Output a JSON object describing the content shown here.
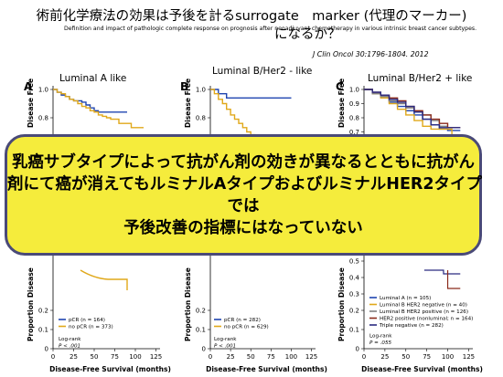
{
  "header": {
    "title_line1": "術前化学療法の効果は予後を計るsurrogate　marker (代理のマーカー)",
    "title_line2": "になるか？",
    "subtitle": "Definition and impact of pathologic complete response on prognosis after neoadjuvant chemotherapy in various intrinsic breast cancer subtypes.",
    "citation": "J Clin Oncol 30:1796-1804.   2012"
  },
  "callout": {
    "line1": "乳癌サブタイプによって抗がん剤の効きが異なるとともに抗がん",
    "line2": "剤にて癌が消えてもルミナルAタイプおよびルミナルHER2タイプ",
    "line3": "では",
    "line4": "予後改善の指標にはなっていない"
  },
  "colors": {
    "blue": "#1f44b0",
    "gold": "#e0a81a",
    "gray": "#808080",
    "dark_red": "#8b2a1a",
    "navy": "#2a2a80",
    "callout_fill": "#f5ec3c",
    "callout_border": "#4a4a78"
  },
  "chart_data": [
    {
      "type": "line",
      "panel": "A",
      "title": "Luminal A like",
      "ylabel": "Disease Free",
      "ylabel_lower": "Proportion Disease",
      "xlabel": "Disease-Free Survival (months)",
      "xticks": [
        0,
        25,
        50,
        75,
        100,
        125
      ],
      "yticks_upper": [
        "1.0",
        "0.8",
        "0.6"
      ],
      "yticks_lower": [
        "0.2",
        "0.1",
        "0"
      ],
      "ylim": [
        0,
        1
      ],
      "xlim": [
        0,
        130
      ],
      "series": [
        {
          "name": "pCR (n = 164)",
          "color": "#1f44b0",
          "x": [
            0,
            5,
            10,
            15,
            20,
            25,
            30,
            35,
            40,
            45,
            50,
            55,
            60,
            90
          ],
          "y": [
            1.0,
            0.98,
            0.96,
            0.95,
            0.93,
            0.92,
            0.92,
            0.91,
            0.89,
            0.87,
            0.85,
            0.84,
            0.84,
            0.84
          ]
        },
        {
          "name": "no pCR (n = 373)",
          "color": "#e0a81a",
          "x": [
            0,
            5,
            10,
            15,
            20,
            25,
            30,
            35,
            40,
            45,
            50,
            55,
            60,
            65,
            70,
            75,
            80,
            85,
            95,
            110
          ],
          "y": [
            1.0,
            0.98,
            0.97,
            0.95,
            0.93,
            0.92,
            0.9,
            0.88,
            0.87,
            0.85,
            0.84,
            0.82,
            0.81,
            0.8,
            0.79,
            0.79,
            0.76,
            0.76,
            0.73,
            0.73
          ]
        }
      ],
      "stat_label": "Log-rank",
      "stat_value": "P < .001"
    },
    {
      "type": "line",
      "panel": "B",
      "title": "Luminal B/Her2 -  like",
      "ylabel": "Disease Free",
      "ylabel_lower": "Proportion Disease",
      "xlabel": "Disease-Free Survival (months)",
      "xticks": [
        0,
        25,
        50,
        75,
        100,
        125
      ],
      "yticks_upper": [
        "1.0",
        "0.8",
        "0.6"
      ],
      "yticks_lower": [
        "0.2",
        "0.1",
        "0"
      ],
      "ylim": [
        0,
        1
      ],
      "xlim": [
        0,
        130
      ],
      "series": [
        {
          "name": "pCR (n = 282)",
          "color": "#1f44b0",
          "x": [
            0,
            10,
            20,
            100
          ],
          "y": [
            1.0,
            0.97,
            0.94,
            0.94
          ]
        },
        {
          "name": "no pCR (n = 629)",
          "color": "#e0a81a",
          "x": [
            0,
            5,
            10,
            15,
            20,
            25,
            30,
            35,
            40,
            45,
            50,
            55,
            60,
            65,
            70,
            75,
            80,
            85,
            90,
            95,
            100
          ],
          "y": [
            1.0,
            0.97,
            0.93,
            0.9,
            0.86,
            0.82,
            0.79,
            0.76,
            0.73,
            0.7,
            0.68,
            0.66,
            0.64,
            0.63,
            0.61,
            0.6,
            0.59,
            0.58,
            0.58,
            0.56,
            0.56
          ]
        }
      ],
      "stat_label": "Log-rank",
      "stat_value": "P < .001"
    },
    {
      "type": "line",
      "panel": "C",
      "title": "Luminal B/Her2 +   like",
      "ylabel": "Disease Free",
      "ylabel_lower": "Proportion Disease",
      "xlabel": "Disease-Free Survival (months)",
      "xticks": [
        0,
        25,
        50,
        75,
        100,
        125
      ],
      "yticks_upper": [
        "1.0",
        "0.9",
        "0.8",
        "0.7",
        "0.6"
      ],
      "yticks_lower": [
        "0.5",
        "0.4",
        "0.3",
        "0.2",
        "0.1",
        "0"
      ],
      "ylim": [
        0,
        1
      ],
      "xlim": [
        0,
        130
      ],
      "series": [
        {
          "name": "Luminal A (n = 105)",
          "color": "#1f44b0",
          "x": [
            0,
            10,
            20,
            30,
            40,
            50,
            60,
            70,
            80,
            90,
            100,
            115
          ],
          "y": [
            1.0,
            0.98,
            0.95,
            0.91,
            0.88,
            0.85,
            0.82,
            0.79,
            0.75,
            0.72,
            0.71,
            0.71
          ]
        },
        {
          "name": "Luminal B HER2 negative (n = 40)",
          "color": "#e0a81a",
          "x": [
            0,
            10,
            20,
            30,
            40,
            50,
            60,
            70,
            80,
            90,
            100,
            105,
            115
          ],
          "y": [
            1.0,
            0.97,
            0.94,
            0.9,
            0.86,
            0.82,
            0.78,
            0.74,
            0.72,
            0.72,
            0.72,
            0.6,
            0.6
          ]
        },
        {
          "name": "Luminal B HER2 positive (n = 126)",
          "color": "#808080",
          "x": [
            0,
            10,
            20,
            30,
            40,
            50,
            60,
            70,
            80,
            90,
            100
          ],
          "y": [
            1.0,
            0.97,
            0.95,
            0.92,
            0.9,
            0.87,
            0.84,
            0.82,
            0.78,
            0.74,
            0.74
          ]
        },
        {
          "name": "HER2 positive (nonluminal; n = 164)",
          "color": "#8b2a1a",
          "x": [
            0,
            10,
            20,
            30,
            40,
            50,
            60,
            70,
            80,
            90,
            100,
            105,
            115
          ],
          "y": [
            1.0,
            0.98,
            0.96,
            0.94,
            0.92,
            0.88,
            0.85,
            0.82,
            0.79,
            0.76,
            0.73,
            0.73,
            0.73
          ]
        },
        {
          "name": "Triple negative (n = 282)",
          "color": "#2a2a80",
          "x": [
            0,
            10,
            20,
            30,
            40,
            50,
            60,
            70,
            80,
            90,
            100,
            110,
            115
          ],
          "y": [
            1.0,
            0.98,
            0.96,
            0.93,
            0.91,
            0.88,
            0.84,
            0.79,
            0.75,
            0.73,
            0.73,
            0.73,
            0.73
          ]
        }
      ],
      "stat_label": "Log-rank",
      "stat_value": "P = .055"
    }
  ]
}
